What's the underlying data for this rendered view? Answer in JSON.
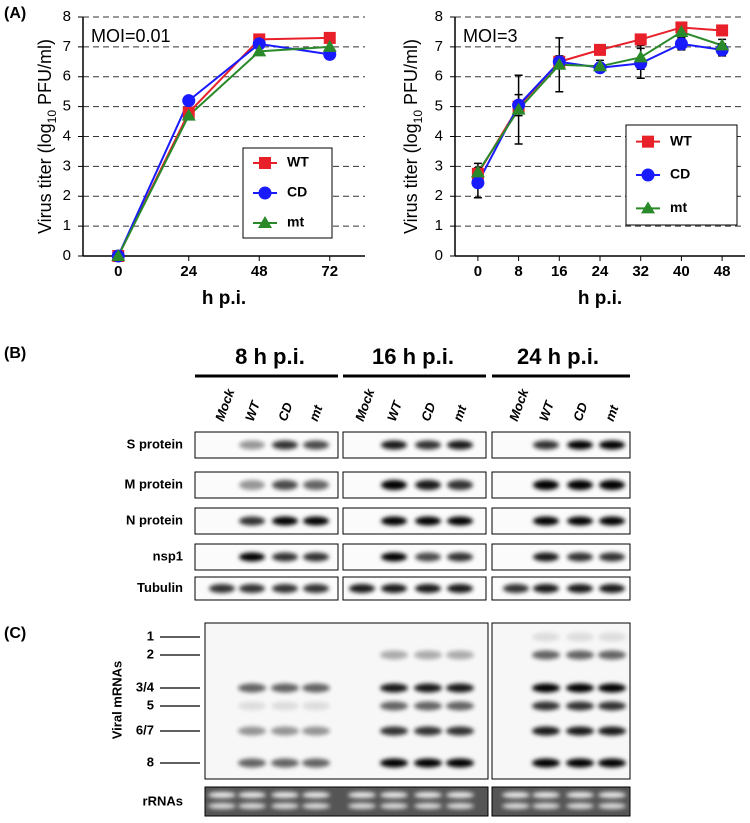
{
  "chart_data": [
    {
      "type": "line",
      "title": "MOI=0.01",
      "x": [
        0,
        24,
        48,
        72
      ],
      "xlim": [
        -12,
        84
      ],
      "xticks": [
        0,
        24,
        48,
        72
      ],
      "ylim": [
        0,
        8
      ],
      "yticks": [
        0,
        1,
        2,
        3,
        4,
        5,
        6,
        7,
        8
      ],
      "grid": true,
      "legend": "lower right",
      "x_label": "h p.i.",
      "y_label": "Virus titer (log",
      "y_label_sub": "10",
      "y_label_end": " PFU/ml)",
      "series": [
        {
          "name": "WT",
          "color": "#e8202a",
          "marker": "square",
          "values": [
            0,
            4.8,
            7.25,
            7.3
          ]
        },
        {
          "name": "CD",
          "color": "#1a1aff",
          "marker": "circle",
          "values": [
            0,
            5.2,
            7.1,
            6.75
          ]
        },
        {
          "name": "mt",
          "color": "#2a8a2a",
          "marker": "triangle",
          "values": [
            0,
            4.7,
            6.85,
            7.0
          ]
        }
      ]
    },
    {
      "type": "line",
      "title": "MOI=3",
      "x": [
        0,
        8,
        16,
        24,
        32,
        40,
        48
      ],
      "xlim": [
        -4.5,
        52.5
      ],
      "xticks": [
        0,
        8,
        16,
        24,
        32,
        40,
        48
      ],
      "ylim": [
        0,
        8
      ],
      "yticks": [
        0,
        1,
        2,
        3,
        4,
        5,
        6,
        7,
        8
      ],
      "grid": true,
      "legend": "lower right",
      "x_label": "h p.i.",
      "y_label": "Virus titer (log",
      "y_label_sub": "10",
      "y_label_end": " PFU/ml)",
      "series": [
        {
          "name": "WT",
          "color": "#e8202a",
          "marker": "square",
          "values": [
            2.75,
            5.0,
            6.5,
            6.9,
            7.25,
            7.65,
            7.55
          ]
        },
        {
          "name": "CD",
          "color": "#1a1aff",
          "marker": "circle",
          "values": [
            2.45,
            5.05,
            6.5,
            6.3,
            6.45,
            7.1,
            6.9
          ],
          "errors": [
            0.5,
            0.35,
            0.2,
            0.15,
            0.5,
            0.2,
            0.2
          ]
        },
        {
          "name": "mt",
          "color": "#2a8a2a",
          "marker": "triangle",
          "values": [
            2.8,
            4.9,
            6.4,
            6.35,
            6.65,
            7.5,
            7.05
          ],
          "errors": [
            0.3,
            1.15,
            0.9,
            0.2,
            0.4,
            0.2,
            0.2
          ]
        }
      ]
    }
  ],
  "panels": [
    "(A)",
    "(B)",
    "(C)"
  ],
  "western": {
    "timepoints": [
      "8 h p.i.",
      "16 h p.i.",
      "24 h p.i."
    ],
    "lanes": [
      "Mock",
      "WT",
      "CD",
      "mt"
    ],
    "rows": [
      "S protein",
      "M protein",
      "N protein",
      "nsp1",
      "Tubulin"
    ]
  },
  "northern": {
    "y_label": "Viral mRNAs",
    "bands": [
      "1",
      "2",
      "3/4",
      "5",
      "6/7",
      "8"
    ],
    "loading": "rRNAs"
  }
}
